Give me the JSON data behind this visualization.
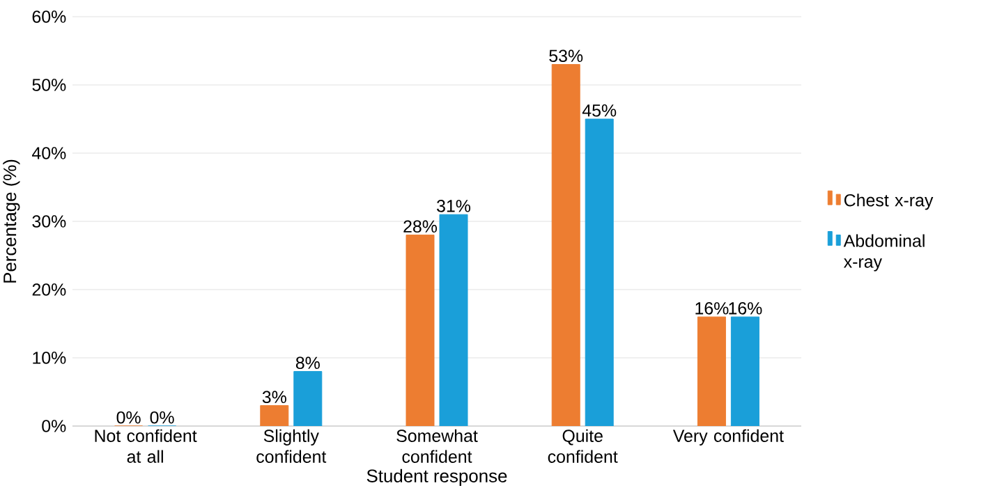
{
  "chart_data": {
    "type": "bar",
    "xlabel": "Student response",
    "ylabel": "Percentage (%)",
    "categories": [
      "Not confident at all",
      "Slightly confident",
      "Somewhat confident",
      "Quite confident",
      "Very confident"
    ],
    "series": [
      {
        "name": "Chest x-ray",
        "color": "#ed7d31",
        "values": [
          0,
          3,
          28,
          53,
          16
        ],
        "value_labels": [
          "0%",
          "3%",
          "28%",
          "53%",
          "16%"
        ]
      },
      {
        "name": "Abdominal x-ray",
        "color": "#1a9fd9",
        "values": [
          0,
          8,
          31,
          45,
          16
        ],
        "value_labels": [
          "0%",
          "8%",
          "31%",
          "45%",
          "16%"
        ]
      }
    ],
    "ylim": [
      0,
      60
    ],
    "yticks": [
      {
        "value": 0,
        "label": "0%"
      },
      {
        "value": 10,
        "label": "10%"
      },
      {
        "value": 20,
        "label": "20%"
      },
      {
        "value": 30,
        "label": "30%"
      },
      {
        "value": 40,
        "label": "40%"
      },
      {
        "value": 50,
        "label": "50%"
      },
      {
        "value": 60,
        "label": "60%"
      }
    ],
    "grid": "y",
    "legend": "right"
  }
}
